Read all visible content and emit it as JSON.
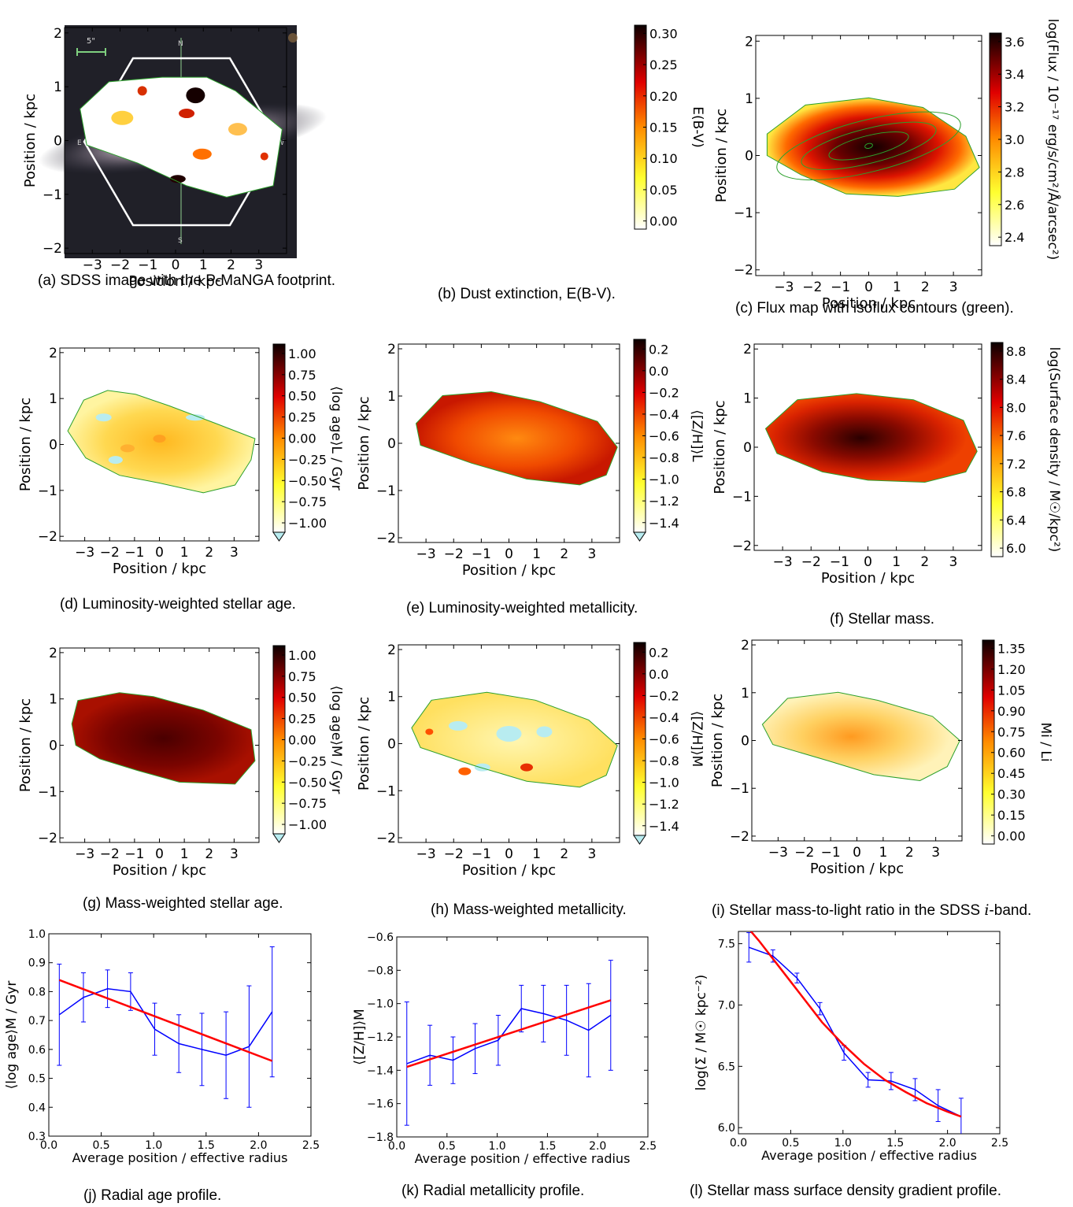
{
  "captions": {
    "a": "(a) SDSS image with the P-MaNGA footprint.",
    "b": "(b) Dust extinction, E(B-V).",
    "c": "(c) Flux map with isoflux contours (green).",
    "d": "(d) Luminosity-weighted stellar age.",
    "e": "(e) Luminosity-weighted metallicity.",
    "f": "(f) Stellar mass.",
    "g": "(g) Mass-weighted stellar age.",
    "h": "(h) Mass-weighted metallicity.",
    "i_pre": "(i) Stellar mass-to-light ratio in the SDSS ",
    "i_var": "i",
    "i_post": "-band.",
    "j": "(j) Radial age profile.",
    "k": "(k) Radial metallicity profile.",
    "l": "(l) Stellar mass surface density gradient profile."
  },
  "sdss_image": {
    "scale_label": "5\"",
    "compass": {
      "n": "N",
      "s": "S",
      "e": "E",
      "w": "W"
    }
  },
  "maps": {
    "xlabel": "Position / kpc",
    "ylabel": "Position / kpc",
    "x_ticks": [
      "−3",
      "−2",
      "−1",
      "0",
      "1",
      "2",
      "3"
    ],
    "y_ticks": [
      "−2",
      "−1",
      "0",
      "1",
      "2"
    ],
    "outline_color": "#2ca02c",
    "panels": [
      {
        "id": "b",
        "cbar_label": "E(B-V)",
        "cbar_ticks": [
          "0.00",
          "0.05",
          "0.10",
          "0.15",
          "0.20",
          "0.25",
          "0.30"
        ],
        "cmap": "hot_r",
        "extend": false
      },
      {
        "id": "c",
        "cbar_label": "log(Flux / 10⁻¹⁷ erg/s/cm²/Å/arcsec²)",
        "cbar_ticks": [
          "2.4",
          "2.6",
          "2.8",
          "3.0",
          "3.2",
          "3.4",
          "3.6"
        ],
        "cmap": "hot_r",
        "extend": false
      },
      {
        "id": "d",
        "cbar_label": "⟨log age⟩L / Gyr",
        "cbar_ticks": [
          "−1.00",
          "−0.75",
          "−0.50",
          "−0.25",
          "0.00",
          "0.25",
          "0.50",
          "0.75",
          "1.00"
        ],
        "cmap": "hot_r",
        "extend": true
      },
      {
        "id": "e",
        "cbar_label": "⟨[Z/H]⟩L",
        "cbar_ticks": [
          "−1.4",
          "−1.2",
          "−1.0",
          "−0.8",
          "−0.6",
          "−0.4",
          "−0.2",
          "0.0",
          "0.2"
        ],
        "cmap": "hot_r",
        "extend": true
      },
      {
        "id": "f",
        "cbar_label": "log(Surface density / M☉/kpc²)",
        "cbar_ticks": [
          "6.0",
          "6.4",
          "6.8",
          "7.2",
          "7.6",
          "8.0",
          "8.4",
          "8.8"
        ],
        "cmap": "hot_r",
        "extend": false
      },
      {
        "id": "g",
        "cbar_label": "⟨log age⟩M / Gyr",
        "cbar_ticks": [
          "−1.00",
          "−0.75",
          "−0.50",
          "−0.25",
          "0.00",
          "0.25",
          "0.50",
          "0.75",
          "1.00"
        ],
        "cmap": "hot_r",
        "extend": true
      },
      {
        "id": "h",
        "cbar_label": "⟨[Z/H]⟩M",
        "cbar_ticks": [
          "−1.4",
          "−1.2",
          "−1.0",
          "−0.8",
          "−0.6",
          "−0.4",
          "−0.2",
          "0.0",
          "0.2"
        ],
        "cmap": "hot_r",
        "extend": true
      },
      {
        "id": "i",
        "cbar_label": "Mi / Li",
        "cbar_ticks": [
          "0.00",
          "0.15",
          "0.30",
          "0.45",
          "0.60",
          "0.75",
          "0.90",
          "1.05",
          "1.20",
          "1.35"
        ],
        "cmap": "hot_r",
        "extend": false
      }
    ]
  },
  "chart_data": [
    {
      "type": "line",
      "panel": "j",
      "xlabel": "Average position / effective radius",
      "ylabel": "⟨log age⟩M / Gyr",
      "xlim": [
        0.0,
        2.5
      ],
      "ylim": [
        0.3,
        1.0
      ],
      "x_ticks": [
        "0.0",
        "0.5",
        "1.0",
        "1.5",
        "2.0",
        "2.5"
      ],
      "y_ticks": [
        "0.3",
        "0.4",
        "0.5",
        "0.6",
        "0.7",
        "0.8",
        "0.9",
        "1.0"
      ],
      "series": [
        {
          "color": "#0000ff",
          "x": [
            0.1,
            0.33,
            0.56,
            0.78,
            1.01,
            1.24,
            1.46,
            1.69,
            1.91,
            2.13
          ],
          "y": [
            0.72,
            0.78,
            0.81,
            0.8,
            0.67,
            0.62,
            0.6,
            0.58,
            0.61,
            0.73
          ],
          "yerr": [
            0.175,
            0.085,
            0.065,
            0.065,
            0.09,
            0.1,
            0.125,
            0.15,
            0.21,
            0.225
          ]
        },
        {
          "color": "#ff0000",
          "x": [
            0.1,
            2.13
          ],
          "y": [
            0.84,
            0.56
          ]
        }
      ]
    },
    {
      "type": "line",
      "panel": "k",
      "xlabel": "Average position / effective radius",
      "ylabel": "⟨[Z/H]⟩M",
      "xlim": [
        0.0,
        2.5
      ],
      "ylim": [
        -1.8,
        -0.6
      ],
      "x_ticks": [
        "0.0",
        "0.5",
        "1.0",
        "1.5",
        "2.0",
        "2.5"
      ],
      "y_ticks": [
        "−1.8",
        "−1.6",
        "−1.4",
        "−1.2",
        "−1.0",
        "−0.8",
        "−0.6"
      ],
      "series": [
        {
          "color": "#0000ff",
          "x": [
            0.1,
            0.33,
            0.56,
            0.78,
            1.01,
            1.24,
            1.46,
            1.69,
            1.91,
            2.13
          ],
          "y": [
            -1.36,
            -1.31,
            -1.34,
            -1.27,
            -1.22,
            -1.03,
            -1.06,
            -1.1,
            -1.16,
            -1.07
          ],
          "yerr": [
            0.37,
            0.18,
            0.14,
            0.15,
            0.15,
            0.14,
            0.17,
            0.21,
            0.28,
            0.33
          ]
        },
        {
          "color": "#ff0000",
          "x": [
            0.1,
            2.13
          ],
          "y": [
            -1.38,
            -0.98
          ]
        }
      ]
    },
    {
      "type": "line",
      "panel": "l",
      "xlabel": "Average position / effective radius",
      "ylabel": "log(Σ / M☉ kpc⁻²)",
      "xlim": [
        0.0,
        2.5
      ],
      "ylim": [
        5.95,
        7.6
      ],
      "x_ticks": [
        "0.0",
        "0.5",
        "1.0",
        "1.5",
        "2.0",
        "2.5"
      ],
      "y_ticks": [
        "6.0",
        "6.5",
        "7.0",
        "7.5"
      ],
      "series": [
        {
          "color": "#0000ff",
          "x": [
            0.1,
            0.33,
            0.56,
            0.78,
            1.01,
            1.24,
            1.46,
            1.69,
            1.91,
            2.13
          ],
          "y": [
            7.47,
            7.4,
            7.22,
            6.97,
            6.61,
            6.39,
            6.38,
            6.31,
            6.18,
            6.09
          ],
          "yerr": [
            0.12,
            0.05,
            0.04,
            0.05,
            0.06,
            0.06,
            0.07,
            0.09,
            0.13,
            0.15
          ]
        },
        {
          "color": "#ff0000",
          "x": [
            0.0,
            0.2,
            0.4,
            0.6,
            0.8,
            1.0,
            1.2,
            1.4,
            1.6,
            1.8,
            2.0,
            2.13
          ],
          "y": [
            7.72,
            7.52,
            7.3,
            7.08,
            6.86,
            6.68,
            6.52,
            6.39,
            6.29,
            6.2,
            6.13,
            6.09
          ]
        }
      ]
    }
  ]
}
